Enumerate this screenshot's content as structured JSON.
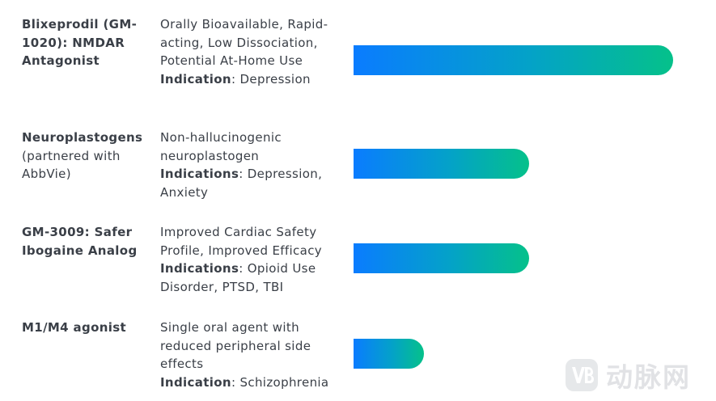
{
  "chart_data": {
    "type": "bar",
    "orientation": "horizontal",
    "axis": "none",
    "value_scale": "relative bar length (longest bar = 1.0)",
    "programs": [
      {
        "name": "Blixeprodil (GM-1020): NMDAR Antagonist",
        "name_bold": "Blixeprodil (GM-1020): NMDAR Antagonist",
        "name_rest": "",
        "description": "Orally Bioavailable, Rapid-acting, Low Dissociation, Potential At-Home Use",
        "indication_key": "Indication",
        "indication_value": ": Depression",
        "value": 1.0
      },
      {
        "name": "Neuroplastogens (partnered with AbbVie)",
        "name_bold": "Neuroplastogens",
        "name_rest": " (partnered with AbbVie)",
        "description": "Non-hallucinogenic neuroplastogen",
        "indication_key": "Indications",
        "indication_value": ": Depression, Anxiety",
        "value": 0.55
      },
      {
        "name": "GM-3009: Safer Ibogaine Analog",
        "name_bold": "GM-3009: Safer Ibogaine Analog",
        "name_rest": "",
        "description": "Improved Cardiac Safety Profile, Improved Efficacy",
        "indication_key": "Indications",
        "indication_value": ": Opioid Use Disorder, PTSD, TBI",
        "value": 0.55
      },
      {
        "name": "M1/M4 agonist",
        "name_bold": "M1/M4 agonist",
        "name_rest": "",
        "description": "Single oral agent with reduced peripheral side effects",
        "indication_key": "Indication",
        "indication_value": ": Schizophrenia",
        "value": 0.22
      }
    ],
    "colors": {
      "bar_gradient_start": "#0a7cff",
      "bar_gradient_mid": "#04a2c8",
      "bar_gradient_end": "#05c18a",
      "text": "#3a3f47"
    }
  },
  "watermark": {
    "text": "动脉网",
    "logo_icon": "vb-logo-icon"
  }
}
